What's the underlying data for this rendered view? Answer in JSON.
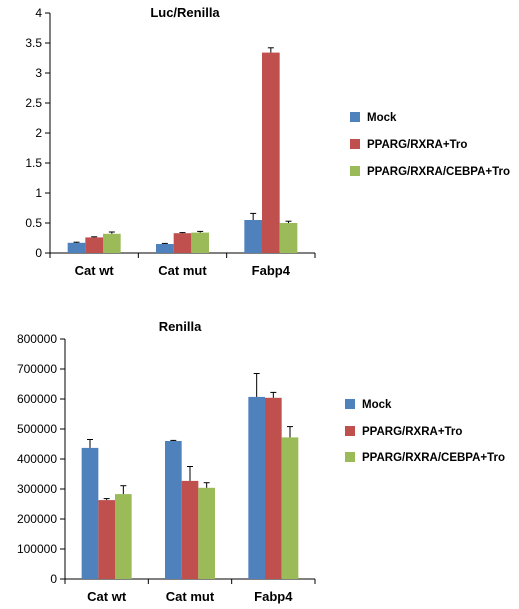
{
  "chart_data": [
    {
      "type": "bar",
      "title": "Luc/Renilla",
      "categories": [
        "Cat wt",
        "Cat mut",
        "Fabp4"
      ],
      "ylim": [
        0,
        4
      ],
      "yticks": [
        "0",
        "0.5",
        "1",
        "1.5",
        "2",
        "2.5",
        "3",
        "3.5",
        "4"
      ],
      "ytick_values": [
        0,
        0.5,
        1,
        1.5,
        2,
        2.5,
        3,
        3.5,
        4
      ],
      "grid": false,
      "legend_position": "right",
      "series": [
        {
          "name": "Mock",
          "color": "#4F81BD",
          "values": [
            0.17,
            0.15,
            0.55
          ],
          "errors": [
            0.01,
            0.01,
            0.11
          ]
        },
        {
          "name": "PPARG/RXRA+Tro",
          "color": "#C0504D",
          "values": [
            0.26,
            0.33,
            3.34
          ],
          "errors": [
            0.01,
            0.01,
            0.08
          ]
        },
        {
          "name": "PPARG/RXRA/CEBPA+Tro",
          "color": "#9BBB59",
          "values": [
            0.32,
            0.34,
            0.5
          ],
          "errors": [
            0.03,
            0.02,
            0.03
          ]
        }
      ]
    },
    {
      "type": "bar",
      "title": "Renilla",
      "categories": [
        "Cat wt",
        "Cat mut",
        "Fabp4"
      ],
      "ylim": [
        0,
        800000
      ],
      "yticks": [
        "0",
        "100000",
        "200000",
        "300000",
        "400000",
        "500000",
        "600000",
        "700000",
        "800000"
      ],
      "ytick_values": [
        0,
        100000,
        200000,
        300000,
        400000,
        500000,
        600000,
        700000,
        800000
      ],
      "grid": false,
      "legend_position": "right",
      "series": [
        {
          "name": "Mock",
          "color": "#4F81BD",
          "values": [
            437000,
            460000,
            607000
          ],
          "errors": [
            28000,
            2000,
            78000
          ]
        },
        {
          "name": "PPARG/RXRA+Tro",
          "color": "#C0504D",
          "values": [
            263000,
            327000,
            604000
          ],
          "errors": [
            5000,
            48000,
            18000
          ]
        },
        {
          "name": "PPARG/RXRA/CEBPA+Tro",
          "color": "#9BBB59",
          "values": [
            283000,
            304000,
            472000
          ],
          "errors": [
            28000,
            17000,
            36000
          ]
        }
      ]
    }
  ]
}
